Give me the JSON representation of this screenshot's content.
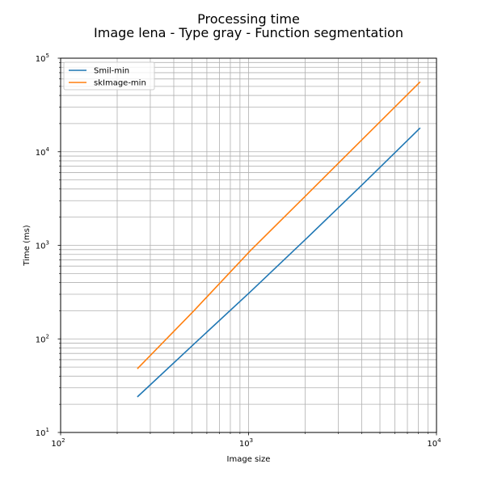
{
  "chart_data": {
    "type": "line",
    "title": "Processing time",
    "subtitle": "Image lena - Type gray - Function segmentation",
    "xlabel": "Image size",
    "ylabel": "Time (ms)",
    "xscale": "log",
    "yscale": "log",
    "xlim": [
      100,
      10000
    ],
    "ylim": [
      10,
      100000
    ],
    "grid": true,
    "legend_position": "top-left",
    "x_ticks": [
      {
        "base": "10",
        "exp": "2",
        "value": 100
      },
      {
        "base": "10",
        "exp": "3",
        "value": 1000
      },
      {
        "base": "10",
        "exp": "4",
        "value": 10000
      }
    ],
    "y_ticks": [
      {
        "base": "10",
        "exp": "1",
        "value": 10
      },
      {
        "base": "10",
        "exp": "2",
        "value": 100
      },
      {
        "base": "10",
        "exp": "3",
        "value": 1000
      },
      {
        "base": "10",
        "exp": "4",
        "value": 10000
      },
      {
        "base": "10",
        "exp": "5",
        "value": 100000
      }
    ],
    "series": [
      {
        "name": "Smil-min",
        "color": "#1f77b4",
        "x": [
          256,
          512,
          1024,
          2048,
          4096,
          8192
        ],
        "y": [
          24,
          88,
          320,
          1200,
          4600,
          18000
        ]
      },
      {
        "name": "skImage-min",
        "color": "#ff7f0e",
        "x": [
          256,
          512,
          1024,
          2048,
          4096,
          8192
        ],
        "y": [
          48,
          200,
          880,
          3500,
          14000,
          56000
        ]
      }
    ]
  }
}
